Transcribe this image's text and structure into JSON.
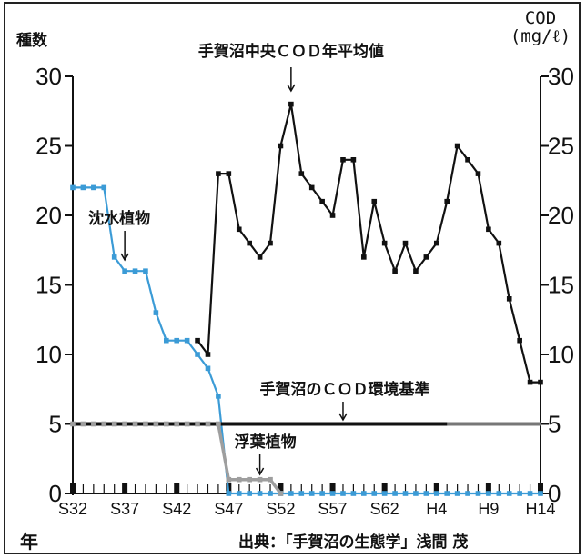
{
  "chart_data": {
    "type": "line",
    "y_left_label": "種数",
    "y_right_label": [
      "COD",
      "(mg/ℓ)"
    ],
    "x_axis_corner_label": "年",
    "source": "出典：「手賀沼の生態学」浅間 茂",
    "ylim": [
      0,
      30
    ],
    "yticks": [
      0,
      5,
      10,
      15,
      20,
      25,
      30
    ],
    "xticks": [
      "S32",
      "S37",
      "S42",
      "S47",
      "S52",
      "S57",
      "S62",
      "H4",
      "H9",
      "H14"
    ],
    "series": [
      {
        "name": "沈水植物",
        "color": "#3b9bd6",
        "axis": "left",
        "x": [
          1957,
          1958,
          1959,
          1960,
          1961,
          1962,
          1963,
          1964,
          1965,
          1966,
          1967,
          1968,
          1969,
          1970,
          1971,
          1972,
          1973,
          1974,
          1975,
          1976,
          1977,
          1978,
          1979,
          1980,
          1981,
          1982,
          1983,
          1984,
          1985,
          1986,
          1987,
          1988,
          1989,
          1990,
          1991,
          1992,
          1993,
          1994,
          1995,
          1996,
          1997,
          1998,
          1999,
          2000,
          2001,
          2002
        ],
        "values": [
          22,
          22,
          22,
          22,
          17,
          16,
          16,
          16,
          13,
          11,
          11,
          11,
          10,
          9,
          7,
          0,
          0,
          0,
          0,
          0,
          0,
          0,
          0,
          0,
          0,
          0,
          0,
          0,
          0,
          0,
          0,
          0,
          0,
          0,
          0,
          0,
          0,
          0,
          0,
          0,
          0,
          0,
          0,
          0,
          0,
          0
        ]
      },
      {
        "name": "浮葉植物",
        "color": "#9e9e9e",
        "axis": "left",
        "x": [
          1957,
          1958,
          1959,
          1960,
          1961,
          1962,
          1963,
          1964,
          1965,
          1966,
          1967,
          1968,
          1969,
          1970,
          1971,
          1972,
          1973,
          1974,
          1975,
          1976,
          1977
        ],
        "values": [
          5,
          5,
          5,
          5,
          5,
          5,
          5,
          5,
          5,
          5,
          5,
          5,
          5,
          5,
          5,
          1,
          1,
          1,
          1,
          1,
          0
        ]
      },
      {
        "name": "手賀沼中央COD年平均値",
        "color": "#111111",
        "axis": "right",
        "x": [
          1969,
          1970,
          1971,
          1972,
          1973,
          1974,
          1975,
          1976,
          1977,
          1978,
          1979,
          1980,
          1981,
          1982,
          1983,
          1984,
          1985,
          1986,
          1987,
          1988,
          1989,
          1990,
          1991,
          1992,
          1993,
          1994,
          1995,
          1996,
          1997,
          1998,
          1999,
          2000,
          2001,
          2002
        ],
        "values": [
          11,
          10,
          23,
          23,
          19,
          18,
          17,
          18,
          25,
          28,
          23,
          22,
          21,
          20,
          24,
          24,
          17,
          21,
          18,
          16,
          18,
          16,
          17,
          18,
          21,
          25,
          24,
          23,
          19,
          18,
          14,
          11,
          8,
          8
        ]
      },
      {
        "name": "手賀沼のCOD環境基準",
        "color": "#111111",
        "axis": "right",
        "x": [
          1957,
          2002
        ],
        "values": [
          5,
          5
        ]
      }
    ],
    "annotations": [
      {
        "text": "手賀沼中央ＣＯＤ年平均値",
        "x": 1978,
        "y": 28
      },
      {
        "text": "沈水植物",
        "x": 1962,
        "y": 17
      },
      {
        "text": "手賀沼のＣＯＤ環境基準",
        "x": 1983,
        "y": 5
      },
      {
        "text": "浮葉植物",
        "x": 1974,
        "y": 1
      }
    ]
  }
}
